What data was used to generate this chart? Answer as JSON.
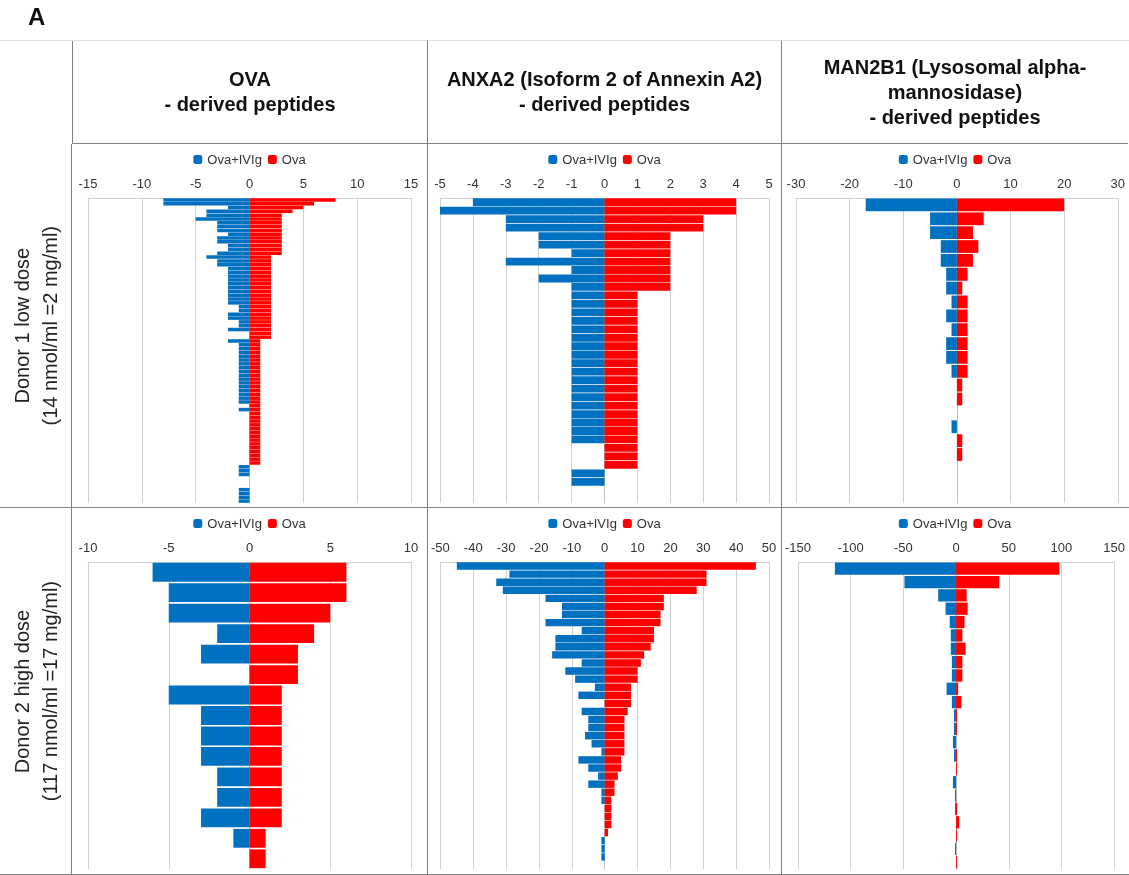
{
  "chart_data": [
    {
      "type": "bar",
      "orientation": "horizontal",
      "stacked": true,
      "title": "OVA\n- derived peptides",
      "ylabel": "Donor 1 low dose\n(14 nmol/ml =2 mg/ml)",
      "annotations": [
        "A"
      ],
      "legend": "top",
      "grid": "x",
      "xlim": [
        -15,
        15
      ],
      "xticks": [
        -15,
        -10,
        -5,
        0,
        5,
        10,
        15
      ],
      "categories": [
        null,
        null,
        null,
        null,
        null,
        null,
        null,
        null,
        null,
        null,
        null,
        null,
        null,
        null,
        null,
        null,
        null,
        null,
        null,
        null,
        null,
        null,
        null,
        null,
        null,
        null,
        null,
        null,
        null,
        null,
        null,
        null,
        null,
        null,
        null,
        null,
        null,
        null,
        null,
        null,
        null,
        null,
        null,
        null,
        null,
        null,
        null,
        null,
        null,
        null,
        null,
        null,
        null,
        null,
        null,
        null,
        null,
        null,
        null,
        null,
        null,
        null,
        null,
        null,
        null,
        null,
        null,
        null,
        null,
        null,
        null,
        null,
        null,
        null,
        null,
        null,
        null,
        null,
        null,
        null
      ],
      "series": [
        {
          "name": "Ova+IVIg",
          "color": "#0070c0",
          "values": [
            -8,
            -8,
            -2,
            -4,
            -4,
            -5,
            -3,
            -3,
            -3,
            -2,
            -3,
            -3,
            -2,
            -2,
            -3,
            -4,
            -3,
            -3,
            -2,
            -2,
            -2,
            -2,
            -2,
            -2,
            -2,
            -2,
            -2,
            -2,
            -1,
            -1,
            -2,
            -2,
            -1,
            -1,
            -2,
            null,
            null,
            -2,
            -1,
            -1,
            -1,
            -1,
            -1,
            -1,
            -1,
            -1,
            -1,
            -1,
            -1,
            -1,
            -1,
            -1,
            -1,
            -1,
            null,
            -1,
            null,
            null,
            null,
            null,
            null,
            null,
            null,
            null,
            null,
            null,
            null,
            null,
            null,
            null,
            -1,
            -1,
            -1,
            null,
            null,
            null,
            -1,
            -1,
            -1,
            -1
          ]
        },
        {
          "name": "Ova",
          "color": "#ff0000",
          "values": [
            8,
            6,
            5,
            4,
            3,
            3,
            3,
            3,
            3,
            3,
            3,
            3,
            3,
            3,
            3,
            2,
            2,
            2,
            2,
            2,
            2,
            2,
            2,
            2,
            2,
            2,
            2,
            2,
            2,
            2,
            2,
            2,
            2,
            2,
            2,
            2,
            2,
            1,
            1,
            1,
            1,
            1,
            1,
            1,
            1,
            1,
            1,
            1,
            1,
            1,
            1,
            1,
            1,
            1,
            1,
            1,
            1,
            1,
            1,
            1,
            1,
            1,
            1,
            1,
            1,
            1,
            1,
            1,
            1,
            1,
            null,
            null,
            null,
            null,
            null,
            null,
            null,
            null,
            null,
            null
          ]
        }
      ]
    },
    {
      "type": "bar",
      "orientation": "horizontal",
      "stacked": true,
      "title": "ANXA2 (Isoform 2 of Annexin A2)\n- derived peptides",
      "legend": "top",
      "grid": "x",
      "xlim": [
        -5,
        5
      ],
      "xticks": [
        -5,
        -4,
        -3,
        -2,
        -1,
        0,
        1,
        2,
        3,
        4,
        5
      ],
      "categories": [
        null,
        null,
        null,
        null,
        null,
        null,
        null,
        null,
        null,
        null,
        null,
        null,
        null,
        null,
        null,
        null,
        null,
        null,
        null,
        null,
        null,
        null,
        null,
        null,
        null,
        null,
        null,
        null,
        null,
        null,
        null,
        null,
        null,
        null,
        null,
        null
      ],
      "series": [
        {
          "name": "Ova+IVIg",
          "color": "#0070c0",
          "values": [
            -4,
            -5,
            -3,
            -3,
            -2,
            -2,
            -1,
            -3,
            -1,
            -2,
            -1,
            -1,
            -1,
            -1,
            -1,
            -1,
            -1,
            -1,
            -1,
            -1,
            -1,
            -1,
            -1,
            -1,
            -1,
            -1,
            -1,
            -1,
            -1,
            null,
            null,
            null,
            -1,
            -1,
            null,
            null
          ]
        },
        {
          "name": "Ova",
          "color": "#ff0000",
          "values": [
            4,
            4,
            3,
            3,
            2,
            2,
            2,
            2,
            2,
            2,
            2,
            1,
            1,
            1,
            1,
            1,
            1,
            1,
            1,
            1,
            1,
            1,
            1,
            1,
            1,
            1,
            1,
            1,
            1,
            1,
            1,
            1,
            null,
            null,
            null,
            null
          ]
        }
      ]
    },
    {
      "type": "bar",
      "orientation": "horizontal",
      "stacked": true,
      "title": "MAN2B1  (Lysosomal alpha-\nmannosidase)\n- derived peptides",
      "legend": "top",
      "grid": "x",
      "xlim": [
        -30,
        30
      ],
      "xticks": [
        -30,
        -20,
        -10,
        0,
        10,
        20,
        30
      ],
      "categories": [
        null,
        null,
        null,
        null,
        null,
        null,
        null,
        null,
        null,
        null,
        null,
        null,
        null,
        null,
        null,
        null,
        null,
        null,
        null,
        null,
        null,
        null
      ],
      "series": [
        {
          "name": "Ova+IVIg",
          "color": "#0070c0",
          "values": [
            -17,
            -5,
            -5,
            -3,
            -3,
            -2,
            -2,
            -1,
            -2,
            -1,
            -2,
            -2,
            -1,
            null,
            null,
            null,
            -1,
            null,
            null,
            null,
            null,
            null
          ]
        },
        {
          "name": "Ova",
          "color": "#ff0000",
          "values": [
            20,
            5,
            3,
            4,
            3,
            2,
            1,
            2,
            2,
            2,
            2,
            2,
            2,
            1,
            1,
            null,
            null,
            1,
            1,
            null,
            null,
            null
          ]
        }
      ]
    },
    {
      "type": "bar",
      "orientation": "horizontal",
      "stacked": true,
      "ylabel": "Donor 2 high dose\n(117 nmol/ml =17 mg/ml)",
      "legend": "top",
      "grid": "x",
      "xlim": [
        -10,
        10
      ],
      "xticks": [
        -10,
        -5,
        0,
        5,
        10
      ],
      "categories": [
        null,
        null,
        null,
        null,
        null,
        null,
        null,
        null,
        null,
        null,
        null,
        null,
        null,
        null,
        null
      ],
      "series": [
        {
          "name": "Ova+IVIg",
          "color": "#0070c0",
          "values": [
            -6,
            -5,
            -5,
            -2,
            -3,
            null,
            -5,
            -3,
            -3,
            -3,
            -2,
            -2,
            -3,
            -1,
            null
          ]
        },
        {
          "name": "Ova",
          "color": "#ff0000",
          "values": [
            6,
            6,
            5,
            4,
            3,
            3,
            2,
            2,
            2,
            2,
            2,
            2,
            2,
            1,
            1
          ]
        }
      ]
    },
    {
      "type": "bar",
      "orientation": "horizontal",
      "stacked": true,
      "legend": "top",
      "grid": "x",
      "xlim": [
        -50,
        50
      ],
      "xticks": [
        -50,
        -40,
        -30,
        -20,
        -10,
        0,
        10,
        20,
        30,
        40,
        50
      ],
      "categories": [
        null,
        null,
        null,
        null,
        null,
        null,
        null,
        null,
        null,
        null,
        null,
        null,
        null,
        null,
        null,
        null,
        null,
        null,
        null,
        null,
        null,
        null,
        null,
        null,
        null,
        null,
        null,
        null,
        null,
        null,
        null,
        null,
        null,
        null,
        null,
        null,
        null,
        null
      ],
      "series": [
        {
          "name": "Ova+IVIg",
          "color": "#0070c0",
          "values": [
            -45,
            -29,
            -33,
            -31,
            -18,
            -13,
            -13,
            -18,
            -7,
            -15,
            -15,
            -16,
            -7,
            -12,
            -9,
            -3,
            -8,
            null,
            -7,
            -5,
            -5,
            -6,
            -4,
            -1,
            -8,
            -5,
            -2,
            -5,
            -1,
            -1,
            null,
            null,
            null,
            null,
            -1,
            -1,
            -1,
            null
          ]
        },
        {
          "name": "Ova",
          "color": "#ff0000",
          "values": [
            46,
            31,
            31,
            28,
            18,
            18,
            17,
            17,
            15,
            15,
            14,
            12,
            11,
            10,
            10,
            8,
            8,
            8,
            7,
            6,
            6,
            6,
            6,
            6,
            5,
            5,
            4,
            3,
            3,
            2,
            2,
            2,
            2,
            1,
            null,
            null,
            null,
            null
          ]
        }
      ]
    },
    {
      "type": "bar",
      "orientation": "horizontal",
      "stacked": true,
      "legend": "top",
      "grid": "x",
      "xlim": [
        -150,
        150
      ],
      "xticks": [
        -150,
        -100,
        -50,
        0,
        50,
        100,
        150
      ],
      "categories": [
        null,
        null,
        null,
        null,
        null,
        null,
        null,
        null,
        null,
        null,
        null,
        null,
        null,
        null,
        null,
        null,
        null,
        null,
        null,
        null,
        null,
        null,
        null
      ],
      "series": [
        {
          "name": "Ova+IVIg",
          "color": "#0070c0",
          "values": [
            -115,
            -49,
            -17,
            -10,
            -6,
            -5,
            -5,
            -4,
            -4,
            -9,
            -4,
            -2,
            -2,
            -3,
            -2,
            null,
            -3,
            -1,
            -1,
            null,
            null,
            -1,
            null
          ]
        },
        {
          "name": "Ova",
          "color": "#ff0000",
          "values": [
            98,
            41,
            10,
            11,
            8,
            6,
            9,
            6,
            6,
            2,
            5,
            1,
            1,
            null,
            1,
            1,
            null,
            null,
            1,
            3,
            1,
            null,
            1
          ]
        }
      ]
    }
  ]
}
